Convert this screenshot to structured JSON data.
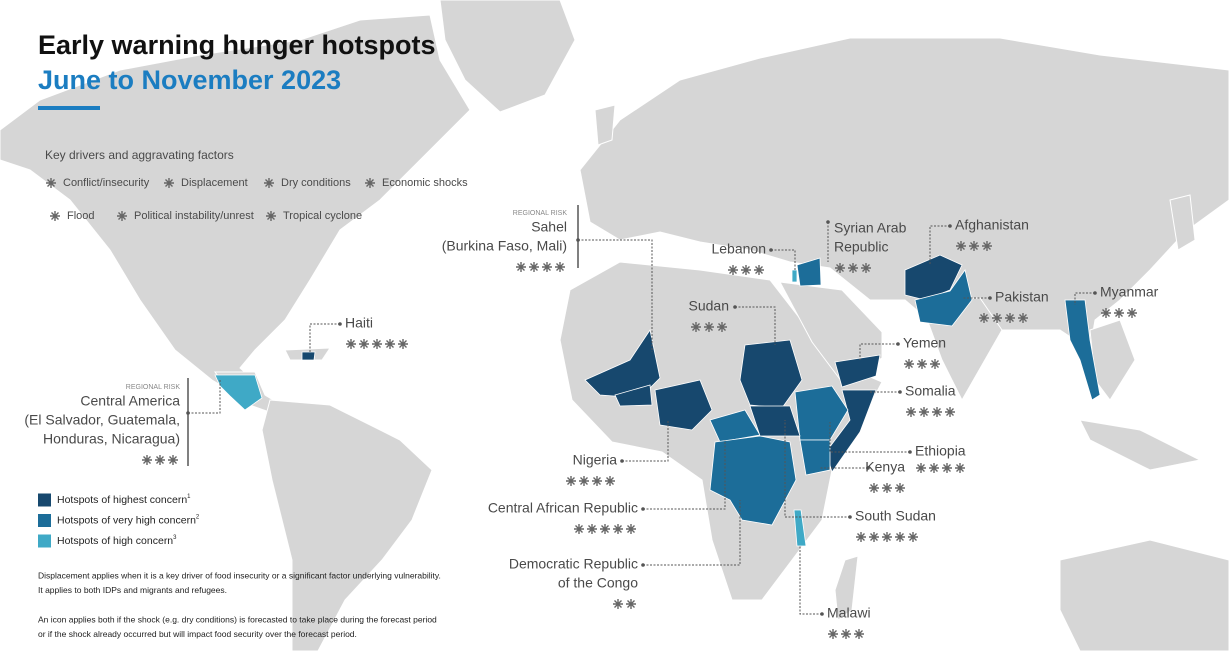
{
  "header": {
    "title": "Early warning hunger hotspots",
    "subtitle": "June to November 2023"
  },
  "drivers_legend": {
    "title": "Key drivers and aggravating factors",
    "items": [
      "Conflict/insecurity",
      "Displacement",
      "Dry conditions",
      "Economic shocks",
      "Flood",
      "Political instability/unrest",
      "Tropical cyclone"
    ]
  },
  "concern_legend": [
    {
      "label": "Hotspots of highest concern",
      "note": "1",
      "color": "#17486e"
    },
    {
      "label": "Hotspots of very high concern",
      "note": "2",
      "color": "#1c6d99"
    },
    {
      "label": "Hotspots of high concern",
      "note": "3",
      "color": "#3fa9c6"
    }
  ],
  "notes": [
    [
      "Displacement applies when it is a key driver of food insecurity or a significant factor underlying vulnerability.",
      "It applies to both IDPs and migrants and refugees."
    ],
    [
      "An icon applies both if the shock (e.g. dry conditions) is forecasted to take place during the forecast period",
      "or if the shock already occurred but will impact food security over the forecast period."
    ]
  ],
  "hotspots": [
    {
      "tag": "REGIONAL RISK",
      "name": [
        "Sahel",
        "(Burkina Faso, Mali)"
      ],
      "color": "#17486e"
    },
    {
      "tag": "REGIONAL RISK",
      "name": [
        "Central America",
        "(El Salvador, Guatemala,",
        "Honduras, Nicaragua)"
      ],
      "color": "#3fa9c6"
    },
    {
      "name": [
        "Haiti"
      ],
      "color": "#17486e"
    },
    {
      "name": [
        "Lebanon"
      ],
      "color": "#3fa9c6"
    },
    {
      "name": [
        "Syrian Arab",
        "Republic"
      ],
      "color": "#1c6d99"
    },
    {
      "name": [
        "Afghanistan"
      ],
      "color": "#17486e"
    },
    {
      "name": [
        "Pakistan"
      ],
      "color": "#1c6d99"
    },
    {
      "name": [
        "Myanmar"
      ],
      "color": "#1c6d99"
    },
    {
      "name": [
        "Sudan"
      ],
      "color": "#17486e"
    },
    {
      "name": [
        "Yemen"
      ],
      "color": "#17486e"
    },
    {
      "name": [
        "Somalia"
      ],
      "color": "#17486e"
    },
    {
      "name": [
        "Ethiopia"
      ],
      "color": "#1c6d99"
    },
    {
      "name": [
        "Kenya"
      ],
      "color": "#1c6d99"
    },
    {
      "name": [
        "Nigeria"
      ],
      "color": "#17486e"
    },
    {
      "name": [
        "Central African Republic"
      ],
      "color": "#1c6d99"
    },
    {
      "name": [
        "Democratic Republic",
        "of the Congo"
      ],
      "color": "#1c6d99"
    },
    {
      "name": [
        "South Sudan"
      ],
      "color": "#17486e"
    },
    {
      "name": [
        "Malawi"
      ],
      "color": "#3fa9c6"
    }
  ]
}
